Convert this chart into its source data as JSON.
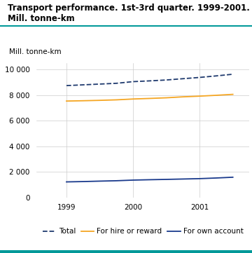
{
  "title_line1": "Transport performance. 1st-3rd quarter. 1999-2001.",
  "title_line2": "Mill. tonne-km",
  "ylabel": "Mill. tonne-km",
  "ylim": [
    0,
    10500
  ],
  "yticks": [
    0,
    2000,
    4000,
    6000,
    8000,
    10000
  ],
  "ytick_labels": [
    "0",
    "2 000",
    "4 000",
    "6 000",
    "8 000",
    "10 000"
  ],
  "xtick_positions": [
    1999.0,
    2000.0,
    2001.0
  ],
  "xtick_labels": [
    "1999",
    "2000",
    "2001"
  ],
  "xlim": [
    1998.55,
    2001.75
  ],
  "series": {
    "Total": {
      "color": "#1f3a6e",
      "linestyle": "--",
      "linewidth": 1.3,
      "x": [
        1999.0,
        1999.25,
        1999.5,
        1999.75,
        2000.0,
        2000.25,
        2000.5,
        2000.75,
        2001.0,
        2001.25,
        2001.5
      ],
      "y": [
        8750,
        8810,
        8870,
        8930,
        9060,
        9120,
        9190,
        9290,
        9390,
        9510,
        9640
      ]
    },
    "For hire or reward": {
      "color": "#f5a623",
      "linestyle": "-",
      "linewidth": 1.3,
      "x": [
        1999.0,
        1999.25,
        1999.5,
        1999.75,
        2000.0,
        2000.25,
        2000.5,
        2000.75,
        2001.0,
        2001.25,
        2001.5
      ],
      "y": [
        7540,
        7565,
        7595,
        7635,
        7700,
        7745,
        7795,
        7870,
        7925,
        7990,
        8065
      ]
    },
    "For own account": {
      "color": "#1a3a8c",
      "linestyle": "-",
      "linewidth": 1.3,
      "x": [
        1999.0,
        1999.25,
        1999.5,
        1999.75,
        2000.0,
        2000.25,
        2000.5,
        2000.75,
        2001.0,
        2001.25,
        2001.5
      ],
      "y": [
        1210,
        1235,
        1270,
        1300,
        1350,
        1380,
        1405,
        1435,
        1465,
        1515,
        1575
      ]
    }
  },
  "legend_entries": [
    "Total",
    "For hire or reward",
    "For own account"
  ],
  "title_color": "#000000",
  "title_fontsize": 8.5,
  "tick_fontsize": 7.5,
  "ylabel_fontsize": 7.5,
  "legend_fontsize": 7.5,
  "grid_color": "#cccccc",
  "background_color": "#ffffff",
  "teal_color": "#009999"
}
